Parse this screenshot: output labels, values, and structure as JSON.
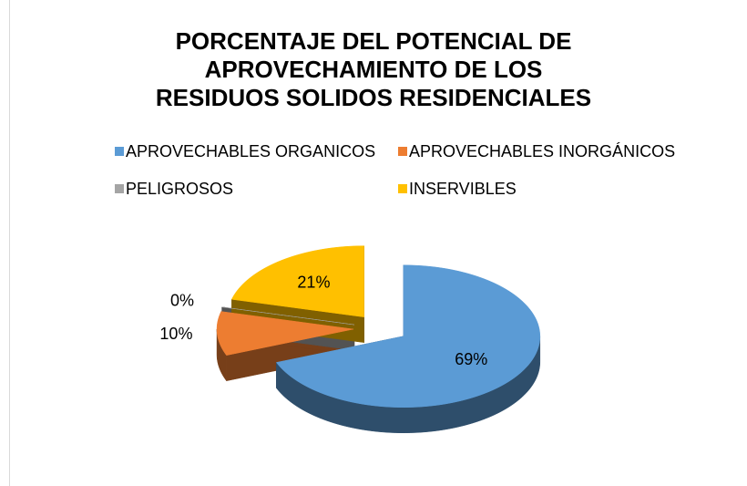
{
  "chart_data": {
    "type": "pie",
    "title": "PORCENTAJE DEL POTENCIAL DE APROVECHAMIENTO DE LOS RESIDUOS SOLIDOS RESIDENCIALES",
    "categories": [
      "APROVECHABLES ORGANICOS",
      "APROVECHABLES INORGÁNICOS",
      "PELIGROSOS",
      "INSERVIBLES"
    ],
    "values": [
      69,
      10,
      0,
      21
    ],
    "value_labels": [
      "69%",
      "10%",
      "0%",
      "21%"
    ],
    "colors": [
      "#5b9bd5",
      "#ed7d31",
      "#a5a5a5",
      "#ffc000"
    ],
    "legend": "top"
  }
}
